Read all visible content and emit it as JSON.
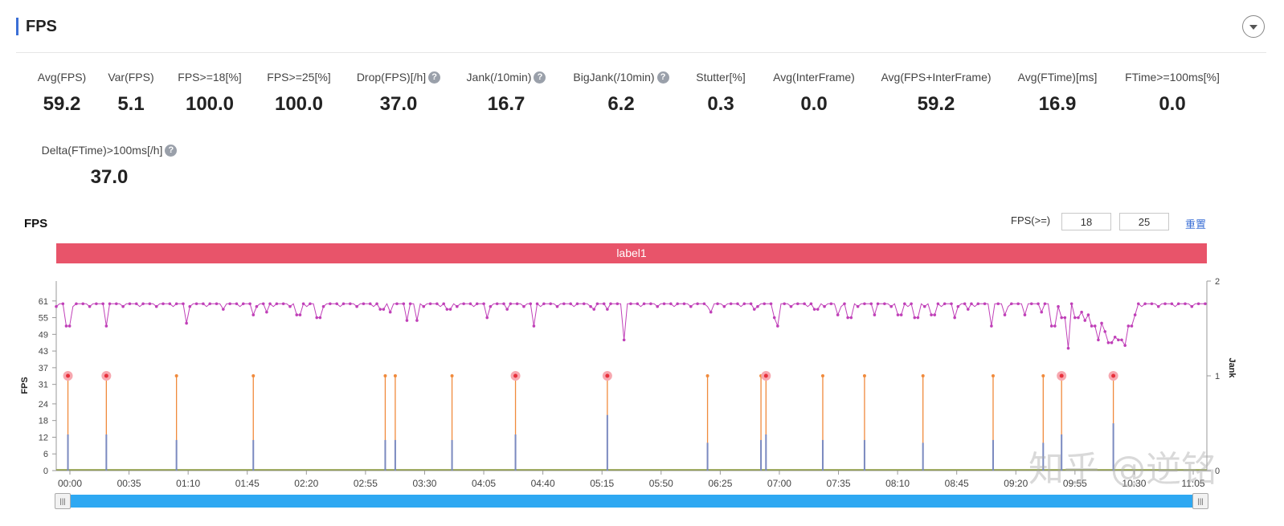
{
  "panel": {
    "title": "FPS"
  },
  "stats": [
    {
      "label": "Avg(FPS)",
      "value": "59.2",
      "help": false
    },
    {
      "label": "Var(FPS)",
      "value": "5.1",
      "help": false
    },
    {
      "label": "FPS>=18[%]",
      "value": "100.0",
      "help": false
    },
    {
      "label": "FPS>=25[%]",
      "value": "100.0",
      "help": false
    },
    {
      "label": "Drop(FPS)[/h]",
      "value": "37.0",
      "help": true
    },
    {
      "label": "Jank(/10min)",
      "value": "16.7",
      "help": true
    },
    {
      "label": "BigJank(/10min)",
      "value": "6.2",
      "help": true
    },
    {
      "label": "Stutter[%]",
      "value": "0.3",
      "help": false
    },
    {
      "label": "Avg(InterFrame)",
      "value": "0.0",
      "help": false
    },
    {
      "label": "Avg(FPS+InterFrame)",
      "value": "59.2",
      "help": false
    },
    {
      "label": "Avg(FTime)[ms]",
      "value": "16.9",
      "help": false
    },
    {
      "label": "FTime>=100ms[%]",
      "value": "0.0",
      "help": false
    },
    {
      "label": "Delta(FTime)>100ms[/h]",
      "value": "37.0",
      "help": true
    }
  ],
  "help_glyph": "?",
  "chart_title": "FPS",
  "filter": {
    "label": "FPS(>=)",
    "value1": "18",
    "value2": "25",
    "reset": "重置"
  },
  "label_bar": "label1",
  "scroll_handles": [
    "|||",
    "|||"
  ],
  "watermark": "知乎 @逆铭",
  "colors": {
    "fps_line": "#c040b8",
    "jank_line": "#f08a3c",
    "bigjank_mark": "#e8303c",
    "bigjank_halo": "#f7a8b0",
    "ftime_line": "#7b8ac0",
    "label_bar": "#e8546a",
    "scroll": "#2ea8f2",
    "accent": "#3b6fd6",
    "baseline": "#8a9a3c"
  },
  "chart_data": {
    "type": "line",
    "y_label": "FPS",
    "y2_label": "Jank",
    "y_ticks": [
      0,
      6,
      12,
      18,
      24,
      31,
      37,
      43,
      49,
      55,
      61
    ],
    "y_range": [
      0,
      67
    ],
    "y2_ticks": [
      0,
      1,
      2
    ],
    "y2_range": [
      0,
      2
    ],
    "x_ticks": [
      "00:00",
      "00:35",
      "01:10",
      "01:45",
      "02:20",
      "02:55",
      "03:30",
      "04:05",
      "04:40",
      "05:15",
      "05:50",
      "06:25",
      "07:00",
      "07:35",
      "08:10",
      "08:45",
      "09:20",
      "09:55",
      "10:30",
      "11:05"
    ],
    "x_range_seconds": [
      0,
      689
    ],
    "fps_baseline": 60,
    "fps_dips": [
      {
        "t": 7,
        "v": 52
      },
      {
        "t": 30,
        "v": 52
      },
      {
        "t": 78,
        "v": 53
      },
      {
        "t": 100,
        "v": 58
      },
      {
        "t": 118,
        "v": 56
      },
      {
        "t": 126,
        "v": 57
      },
      {
        "t": 145,
        "v": 56
      },
      {
        "t": 157,
        "v": 55
      },
      {
        "t": 195,
        "v": 58
      },
      {
        "t": 200,
        "v": 57
      },
      {
        "t": 210,
        "v": 54
      },
      {
        "t": 216,
        "v": 54
      },
      {
        "t": 235,
        "v": 58
      },
      {
        "t": 258,
        "v": 55
      },
      {
        "t": 270,
        "v": 58
      },
      {
        "t": 286,
        "v": 52
      },
      {
        "t": 322,
        "v": 58
      },
      {
        "t": 330,
        "v": 58
      },
      {
        "t": 340,
        "v": 47
      },
      {
        "t": 392,
        "v": 57
      },
      {
        "t": 418,
        "v": 58
      },
      {
        "t": 430,
        "v": 55
      },
      {
        "t": 432,
        "v": 52
      },
      {
        "t": 455,
        "v": 58
      },
      {
        "t": 468,
        "v": 56
      },
      {
        "t": 475,
        "v": 55
      },
      {
        "t": 490,
        "v": 56
      },
      {
        "t": 505,
        "v": 56
      },
      {
        "t": 515,
        "v": 55
      },
      {
        "t": 525,
        "v": 56
      },
      {
        "t": 538,
        "v": 55
      },
      {
        "t": 546,
        "v": 58
      },
      {
        "t": 560,
        "v": 52
      },
      {
        "t": 568,
        "v": 56
      },
      {
        "t": 580,
        "v": 56
      },
      {
        "t": 590,
        "v": 57
      },
      {
        "t": 597,
        "v": 52
      },
      {
        "t": 603,
        "v": 55
      },
      {
        "t": 606,
        "v": 44
      },
      {
        "t": 611,
        "v": 55
      },
      {
        "t": 614,
        "v": 57
      },
      {
        "t": 617,
        "v": 54
      },
      {
        "t": 619,
        "v": 56
      },
      {
        "t": 621,
        "v": 52
      },
      {
        "t": 624,
        "v": 47
      },
      {
        "t": 626,
        "v": 53
      },
      {
        "t": 628,
        "v": 50
      },
      {
        "t": 631,
        "v": 46
      },
      {
        "t": 634,
        "v": 48
      },
      {
        "t": 637,
        "v": 47
      },
      {
        "t": 640,
        "v": 45
      },
      {
        "t": 643,
        "v": 52
      },
      {
        "t": 646,
        "v": 56
      }
    ],
    "jank_events": [
      {
        "t": 7,
        "big": true,
        "ftime": 13
      },
      {
        "t": 30,
        "big": true,
        "ftime": 13
      },
      {
        "t": 72,
        "big": false,
        "ftime": 11
      },
      {
        "t": 118,
        "big": false,
        "ftime": 11
      },
      {
        "t": 197,
        "big": false,
        "ftime": 11
      },
      {
        "t": 203,
        "big": false,
        "ftime": 11
      },
      {
        "t": 237,
        "big": false,
        "ftime": 11
      },
      {
        "t": 275,
        "big": true,
        "ftime": 13
      },
      {
        "t": 330,
        "big": true,
        "ftime": 20
      },
      {
        "t": 390,
        "big": false,
        "ftime": 10
      },
      {
        "t": 422,
        "big": false,
        "ftime": 11
      },
      {
        "t": 425,
        "big": true,
        "ftime": 13
      },
      {
        "t": 459,
        "big": false,
        "ftime": 11
      },
      {
        "t": 484,
        "big": false,
        "ftime": 11
      },
      {
        "t": 519,
        "big": false,
        "ftime": 10
      },
      {
        "t": 561,
        "big": false,
        "ftime": 11
      },
      {
        "t": 591,
        "big": false,
        "ftime": 10
      },
      {
        "t": 602,
        "big": true,
        "ftime": 13
      },
      {
        "t": 633,
        "big": true,
        "ftime": 17
      }
    ]
  }
}
